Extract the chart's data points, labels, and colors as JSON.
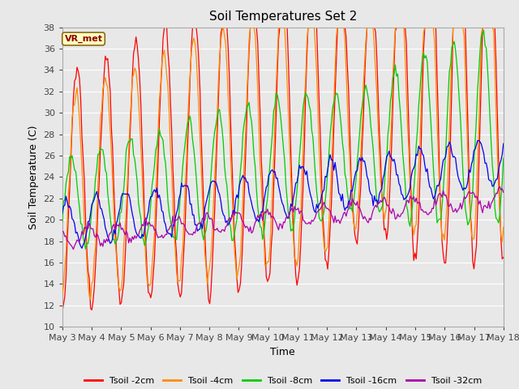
{
  "title": "Soil Temperatures Set 2",
  "xlabel": "Time",
  "ylabel": "Soil Temperature (C)",
  "ylim": [
    10,
    38
  ],
  "yticks": [
    10,
    12,
    14,
    16,
    18,
    20,
    22,
    24,
    26,
    28,
    30,
    32,
    34,
    36,
    38
  ],
  "annotation_text": "VR_met",
  "annotation_color": "#8B0000",
  "annotation_bg": "#FFFFC0",
  "annotation_border": "#8B6914",
  "background_color": "#E8E8E8",
  "grid_color": "#FFFFFF",
  "series": [
    {
      "label": "Tsoil -2cm",
      "color": "#FF0000"
    },
    {
      "label": "Tsoil -4cm",
      "color": "#FF8C00"
    },
    {
      "label": "Tsoil -8cm",
      "color": "#00CC00"
    },
    {
      "label": "Tsoil -16cm",
      "color": "#0000EE"
    },
    {
      "label": "Tsoil -32cm",
      "color": "#AA00AA"
    }
  ],
  "x_tick_labels": [
    "May 3",
    "May 4",
    "May 5",
    "May 6",
    "May 7",
    "May 8",
    "May 9",
    "May 10",
    "May 11",
    "May 12",
    "May 13",
    "May 14",
    "May 15",
    "May 16",
    "May 17",
    "May 18"
  ],
  "num_days": 15,
  "figwidth": 6.4,
  "figheight": 4.8,
  "dpi": 100
}
